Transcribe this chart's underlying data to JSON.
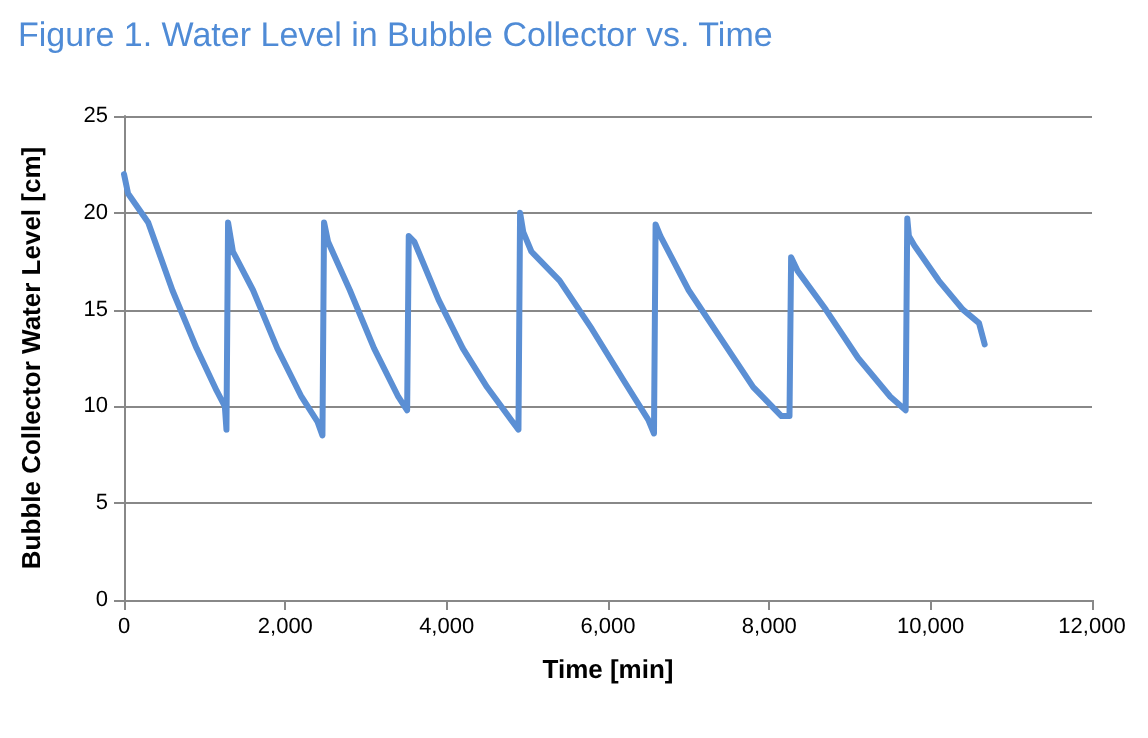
{
  "chart_data": {
    "type": "line",
    "title": "Figure 1. Water Level in Bubble Collector vs. Time",
    "xlabel": "Time [min]",
    "ylabel": "Bubble Collector Water Level [cm]",
    "x": [
      0,
      50,
      300,
      600,
      900,
      1150,
      1250,
      1270,
      1290,
      1350,
      1600,
      1900,
      2200,
      2400,
      2460,
      2480,
      2530,
      2800,
      3100,
      3400,
      3510,
      3530,
      3600,
      3900,
      4200,
      4500,
      4800,
      4890,
      4910,
      4950,
      5050,
      5400,
      5800,
      6200,
      6500,
      6570,
      6590,
      6650,
      7000,
      7400,
      7800,
      8150,
      8250,
      8270,
      8350,
      8700,
      9100,
      9500,
      9690,
      9710,
      9730,
      9800,
      10100,
      10400,
      10600,
      10670
    ],
    "series": [
      {
        "color": "#5b8fd4",
        "values": [
          22,
          21,
          19.5,
          16,
          13,
          10.8,
          10,
          8.8,
          19.5,
          18,
          16,
          13,
          10.5,
          9.2,
          8.5,
          19.5,
          18.5,
          16,
          13,
          10.5,
          9.8,
          18.8,
          18.5,
          15.5,
          13,
          11,
          9.3,
          8.8,
          20,
          19,
          18,
          16.5,
          14,
          11.3,
          9.3,
          8.6,
          19.4,
          18.8,
          16,
          13.5,
          11,
          9.5,
          9.5,
          17.7,
          17,
          15,
          12.5,
          10.5,
          9.8,
          19.7,
          18.8,
          18.3,
          16.5,
          15,
          14.3,
          13.2
        ]
      }
    ],
    "xlim": [
      0,
      12000
    ],
    "xticks": [
      {
        "value": 0,
        "label": "0"
      },
      {
        "value": 2000,
        "label": "2,000"
      },
      {
        "value": 4000,
        "label": "4,000"
      },
      {
        "value": 6000,
        "label": "6,000"
      },
      {
        "value": 8000,
        "label": "8,000"
      },
      {
        "value": 10000,
        "label": "10,000"
      },
      {
        "value": 12000,
        "label": "12,000"
      }
    ],
    "ylim": [
      0,
      25
    ],
    "yticks": [
      0,
      5,
      10,
      15,
      20,
      25
    ],
    "grid": "y",
    "marker": "none",
    "line_style": "solid"
  }
}
